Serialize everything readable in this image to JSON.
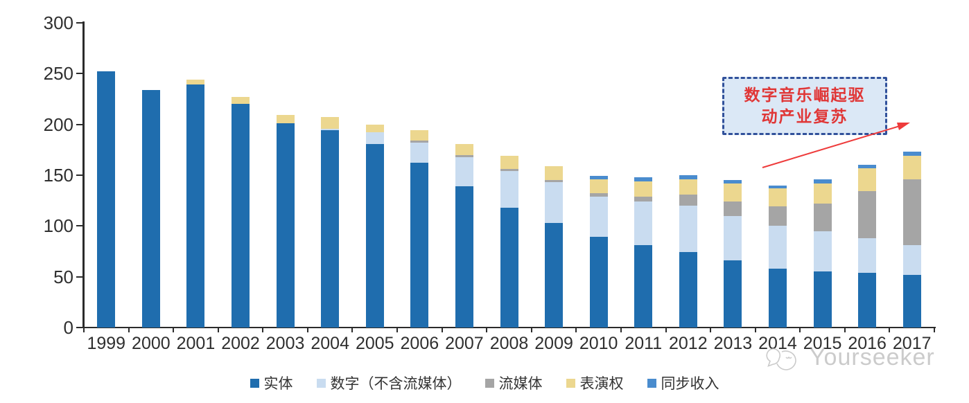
{
  "chart_data": {
    "type": "bar",
    "stacked": true,
    "title": "",
    "xlabel": "",
    "ylabel": "",
    "categories": [
      "1999",
      "2000",
      "2001",
      "2002",
      "2003",
      "2004",
      "2005",
      "2006",
      "2007",
      "2008",
      "2009",
      "2010",
      "2011",
      "2012",
      "2013",
      "2014",
      "2015",
      "2016",
      "2017"
    ],
    "series": [
      {
        "key": "physical",
        "name": "实体",
        "color": "#1f6dae",
        "values": [
          252,
          234,
          239,
          220,
          201,
          194,
          181,
          162,
          139,
          118,
          103,
          89,
          81,
          74,
          66,
          58,
          55,
          54,
          52
        ]
      },
      {
        "key": "digital-excl-streaming",
        "name": "数字（不含流媒体）",
        "color": "#c9dcf0",
        "values": [
          0,
          0,
          0,
          0,
          0,
          2,
          11,
          20,
          29,
          36,
          40,
          40,
          43,
          46,
          44,
          42,
          40,
          34,
          29
        ]
      },
      {
        "key": "streaming",
        "name": "流媒体",
        "color": "#a5a5a5",
        "values": [
          0,
          0,
          0,
          0,
          0,
          0,
          0,
          2,
          2,
          2,
          2,
          3,
          5,
          11,
          14,
          19,
          27,
          46,
          65
        ]
      },
      {
        "key": "performance-rights",
        "name": "表演权",
        "color": "#ecd78f",
        "values": [
          0,
          0,
          5,
          7,
          8,
          11,
          8,
          10,
          11,
          13,
          14,
          14,
          15,
          15,
          18,
          18,
          20,
          23,
          23
        ]
      },
      {
        "key": "sync-revenue",
        "name": "同步收入",
        "color": "#4a8cce",
        "values": [
          0,
          0,
          0,
          0,
          0,
          0,
          0,
          0,
          0,
          0,
          0,
          3,
          4,
          4,
          3,
          3,
          4,
          3,
          4
        ]
      }
    ],
    "ylim": [
      0,
      300
    ],
    "yticks": [
      0,
      50,
      100,
      150,
      200,
      250,
      300
    ],
    "grid": false,
    "legend_position": "bottom"
  },
  "annotation": {
    "line1": "数字音乐崛起驱",
    "line2": "动产业复苏",
    "text_color": "#e03636",
    "border_color": "#31519b",
    "fill_color": "#dbe8f6",
    "arrow_color": "#ee3b3b"
  },
  "watermark": {
    "text": "Yourseeker",
    "color": "#c6c6c6",
    "logo": "speech-bubbles-logo"
  }
}
